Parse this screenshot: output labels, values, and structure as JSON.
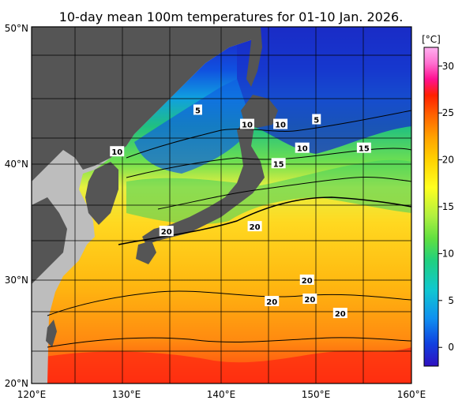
{
  "title": "10-day mean 100m temperatures for 01-10 Jan. 2026.",
  "map": {
    "lon_range": [
      120,
      160
    ],
    "lat_range": [
      20,
      50
    ],
    "lon_ticks": [
      "120°E",
      "130°E",
      "140°E",
      "150°E",
      "160°E"
    ],
    "lat_ticks": [
      "20°N",
      "30°N",
      "40°N",
      "50°N"
    ],
    "grid": true,
    "land_color": "#555555",
    "other_land_color": "#bdbdbd"
  },
  "colorbar": {
    "unit_label": "[°C]",
    "ticks": [
      "0",
      "5",
      "10",
      "15",
      "20",
      "25",
      "30"
    ],
    "range": [
      -2,
      32
    ],
    "colors": [
      "#3010c0",
      "#1040e0",
      "#1090f0",
      "#10c8d0",
      "#20d080",
      "#60e040",
      "#b0f040",
      "#ffff20",
      "#ffd000",
      "#ffa000",
      "#ff6000",
      "#ff2000",
      "#ff1090",
      "#ff70d0",
      "#ffb0f0"
    ]
  },
  "contour_labels": [
    {
      "text": "5",
      "lon": 137.5,
      "lat": 43.0
    },
    {
      "text": "5",
      "lon": 150.0,
      "lat": 42.2
    },
    {
      "text": "10",
      "lon": 129.0,
      "lat": 39.5
    },
    {
      "text": "10",
      "lon": 142.7,
      "lat": 41.8
    },
    {
      "text": "10",
      "lon": 146.2,
      "lat": 41.8
    },
    {
      "text": "10",
      "lon": 148.5,
      "lat": 39.8
    },
    {
      "text": "15",
      "lon": 155.0,
      "lat": 39.8
    },
    {
      "text": "15",
      "lon": 146.0,
      "lat": 38.5
    },
    {
      "text": "20",
      "lon": 134.2,
      "lat": 32.8
    },
    {
      "text": "20",
      "lon": 143.5,
      "lat": 33.2
    },
    {
      "text": "20",
      "lon": 149.0,
      "lat": 28.7
    },
    {
      "text": "20",
      "lon": 149.3,
      "lat": 27.1
    },
    {
      "text": "20",
      "lon": 145.3,
      "lat": 26.9
    },
    {
      "text": "20",
      "lon": 152.5,
      "lat": 25.9
    }
  ]
}
